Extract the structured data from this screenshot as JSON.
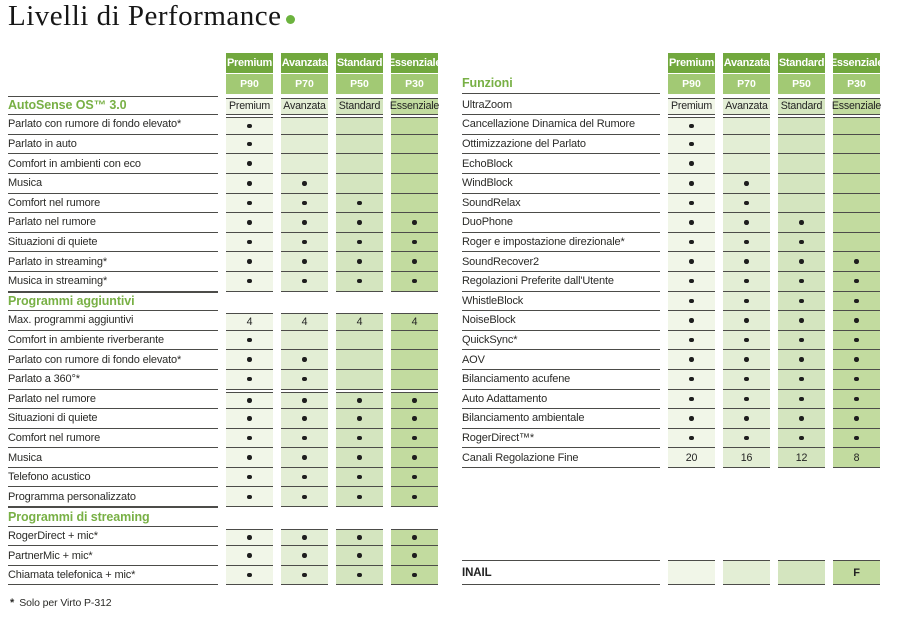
{
  "title": {
    "text": "Livelli di Performance"
  },
  "colors": {
    "header_green": "#72a83e",
    "header_light_green": "#a2c974",
    "column_tints": [
      "#f1f6e8",
      "#e3eed5",
      "#d4e5bf",
      "#c2db9f"
    ],
    "section_title_green": "#78b045",
    "line": "#4c4c49",
    "dot": "#1e1e1e",
    "accent_dot": "#6cb33e"
  },
  "columns": [
    {
      "tier": "Premium",
      "model": "P90"
    },
    {
      "tier": "Avanzata",
      "model": "P70"
    },
    {
      "tier": "Standard",
      "model": "P50"
    },
    {
      "tier": "Essenziale",
      "model": "P30"
    }
  ],
  "left_table": {
    "title": null,
    "sections": [
      {
        "rows": [
          {
            "label": "AutoSense OS™ 3.0",
            "title": true,
            "strip": "start",
            "values": [
              "Premium",
              "Avanzata",
              "Standard",
              "Essenziale"
            ]
          },
          {
            "label": "Parlato con rumore di fondo elevato*",
            "strip": "start",
            "values": [
              "•",
              "",
              "",
              ""
            ]
          },
          {
            "label": "Parlato in auto",
            "values": [
              "•",
              "",
              "",
              ""
            ]
          },
          {
            "label": "Comfort in ambienti con eco",
            "values": [
              "•",
              "",
              "",
              ""
            ]
          },
          {
            "label": "Musica",
            "values": [
              "•",
              "•",
              "",
              ""
            ]
          },
          {
            "label": "Comfort nel rumore",
            "values": [
              "•",
              "•",
              "•",
              ""
            ]
          },
          {
            "label": "Parlato nel rumore",
            "values": [
              "•",
              "•",
              "•",
              "•"
            ]
          },
          {
            "label": "Situazioni di quiete",
            "values": [
              "•",
              "•",
              "•",
              "•"
            ]
          },
          {
            "label": "Parlato in streaming*",
            "values": [
              "•",
              "•",
              "•",
              "•"
            ]
          },
          {
            "label": "Musica in streaming*",
            "values": [
              "•",
              "•",
              "•",
              "•"
            ]
          }
        ]
      },
      {
        "rows": [
          {
            "label": "Programmi aggiuntivi",
            "title": true,
            "values": null
          },
          {
            "label": "Max. programmi aggiuntivi",
            "strip": "start",
            "values": [
              "4",
              "4",
              "4",
              "4"
            ]
          },
          {
            "label": "Comfort in ambiente riverberante",
            "values": [
              "•",
              "",
              "",
              ""
            ]
          },
          {
            "label": "Parlato con rumore di fondo elevato*",
            "values": [
              "•",
              "•",
              "",
              ""
            ]
          },
          {
            "label": "Parlato a 360°*",
            "values": [
              "•",
              "•",
              "",
              ""
            ]
          },
          {
            "label": "Parlato nel rumore",
            "strip": "start",
            "values": [
              "•",
              "•",
              "•",
              "•"
            ]
          },
          {
            "label": "Situazioni di quiete",
            "values": [
              "•",
              "•",
              "•",
              "•"
            ]
          },
          {
            "label": "Comfort nel rumore",
            "values": [
              "•",
              "•",
              "•",
              "•"
            ]
          },
          {
            "label": "Musica",
            "values": [
              "•",
              "•",
              "•",
              "•"
            ]
          },
          {
            "label": "Telefono acustico",
            "values": [
              "•",
              "•",
              "•",
              "•"
            ]
          },
          {
            "label": "Programma personalizzato",
            "values": [
              "•",
              "•",
              "•",
              "•"
            ]
          }
        ]
      },
      {
        "rows": [
          {
            "label": "Programmi di streaming",
            "title": true,
            "values": null
          },
          {
            "label": "RogerDirect + mic*",
            "strip": "start",
            "values": [
              "•",
              "•",
              "•",
              "•"
            ]
          },
          {
            "label": "PartnerMic + mic*",
            "values": [
              "•",
              "•",
              "•",
              "•"
            ]
          },
          {
            "label": "Chiamata telefonica + mic*",
            "values": [
              "•",
              "•",
              "•",
              "•"
            ]
          }
        ]
      }
    ]
  },
  "right_table": {
    "title": "Funzioni",
    "sections": [
      {
        "rows": [
          {
            "label": "UltraZoom",
            "strip": "start",
            "values": [
              "Premium",
              "Avanzata",
              "Standard",
              "Essenziale"
            ]
          },
          {
            "label": "Cancellazione Dinamica del Rumore",
            "strip": "start",
            "values": [
              "•",
              "",
              "",
              ""
            ]
          },
          {
            "label": "Ottimizzazione del Parlato",
            "values": [
              "•",
              "",
              "",
              ""
            ]
          },
          {
            "label": "EchoBlock",
            "values": [
              "•",
              "",
              "",
              ""
            ]
          },
          {
            "label": "WindBlock",
            "values": [
              "•",
              "•",
              "",
              ""
            ]
          },
          {
            "label": "SoundRelax",
            "values": [
              "•",
              "•",
              "",
              ""
            ]
          },
          {
            "label": "DuoPhone",
            "values": [
              "•",
              "•",
              "•",
              ""
            ]
          },
          {
            "label": "Roger e impostazione direzionale*",
            "values": [
              "•",
              "•",
              "•",
              ""
            ]
          },
          {
            "label": "SoundRecover2",
            "values": [
              "•",
              "•",
              "•",
              "•"
            ]
          },
          {
            "label": "Regolazioni Preferite dall'Utente",
            "values": [
              "•",
              "•",
              "•",
              "•"
            ]
          },
          {
            "label": "WhistleBlock",
            "values": [
              "•",
              "•",
              "•",
              "•"
            ]
          },
          {
            "label": "NoiseBlock",
            "values": [
              "•",
              "•",
              "•",
              "•"
            ]
          },
          {
            "label": "QuickSync*",
            "values": [
              "•",
              "•",
              "•",
              "•"
            ]
          },
          {
            "label": "AOV",
            "values": [
              "•",
              "•",
              "•",
              "•"
            ]
          },
          {
            "label": "Bilanciamento acufene",
            "values": [
              "•",
              "•",
              "•",
              "•"
            ]
          },
          {
            "label": "Auto Adattamento",
            "values": [
              "•",
              "•",
              "•",
              "•"
            ]
          },
          {
            "label": "Bilanciamento ambientale",
            "values": [
              "•",
              "•",
              "•",
              "•"
            ]
          },
          {
            "label": "RogerDirect™*",
            "values": [
              "•",
              "•",
              "•",
              "•"
            ]
          },
          {
            "label": "Canali Regolazione Fine",
            "values": [
              "20",
              "16",
              "12",
              "8"
            ]
          }
        ]
      }
    ]
  },
  "inail": {
    "label": "INAIL",
    "values": [
      "",
      "",
      "",
      "F"
    ]
  },
  "footnote": {
    "marker": "*",
    "text": "Solo per Virto P-312"
  }
}
